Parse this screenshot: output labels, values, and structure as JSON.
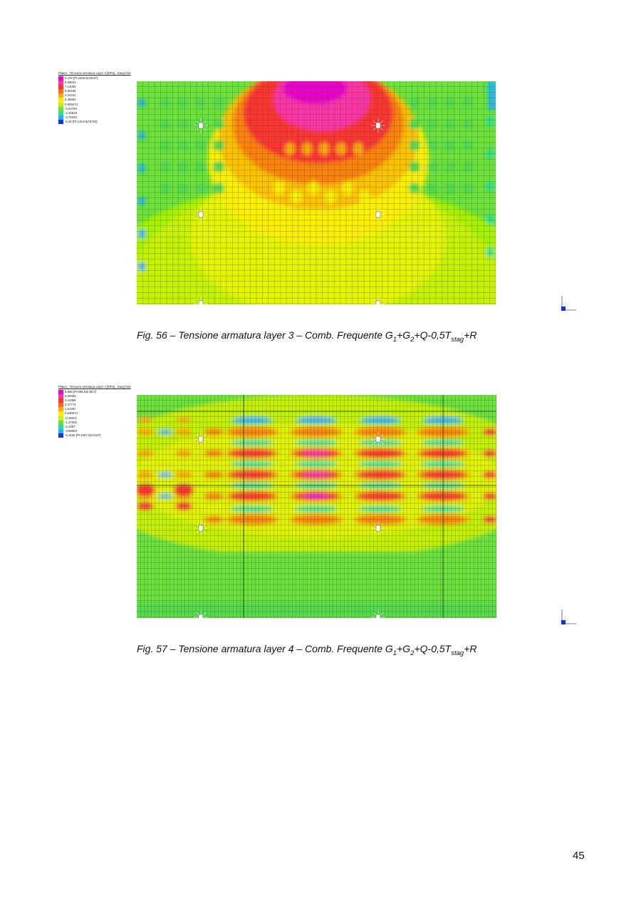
{
  "figures": [
    {
      "legend_title": "Plates - Tensione armatura Layer 3 [MPa] - EasyCmb",
      "legend_values": [
        "9,476 [Pt:3258,Nd:6037]",
        "8,69031",
        "7,13005",
        "5,58158",
        "4,02421",
        "2,46684",
        "0,909474",
        "-0,64790",
        "-2,20526",
        "-3,76263",
        "-5,32 [Pt:1454,Nd:5753]"
      ],
      "legend_colors": [
        "#ee00cc",
        "#ff33aa",
        "#ff3333",
        "#ff6a1a",
        "#ffaa00",
        "#ffee00",
        "#c8f000",
        "#66e040",
        "#22e0a0",
        "#20b0ff",
        "#1533dd"
      ],
      "caption": {
        "prefix": "Fig. 56 – Tensione armatura layer 3 – Comb. Frequente G",
        "s1": "1",
        "a": "+G",
        "s2": "2",
        "b": "+Q-0,5T",
        "s3": "stag",
        "c": "+R"
      }
    },
    {
      "legend_title": "Plates - Tensione armatura Layer 4 [MPa] - EasyCmb",
      "legend_values": [
        "5,885 [Pt:886,Nd:3517]",
        "5,00353",
        "4,14966",
        "2,47776",
        "1,61487",
        "0,630974",
        "-0,35001",
        "-1,47302",
        "-2,4367",
        "-3,89863",
        "-5,1625 [Pt:1057,Nd:4187]"
      ],
      "legend_colors": [
        "#ee00cc",
        "#ff33aa",
        "#ff3333",
        "#ff6a1a",
        "#ffaa00",
        "#ffee00",
        "#c8f000",
        "#66e040",
        "#22e0a0",
        "#20b0ff",
        "#1533dd"
      ],
      "caption": {
        "prefix": "Fig. 57 – Tensione armatura layer 4 – Comb. Frequente G",
        "s1": "1",
        "a": "+G",
        "s2": "2",
        "b": "+Q-0,5T",
        "s3": "stag",
        "c": "+R"
      }
    }
  ],
  "page_number": "45"
}
